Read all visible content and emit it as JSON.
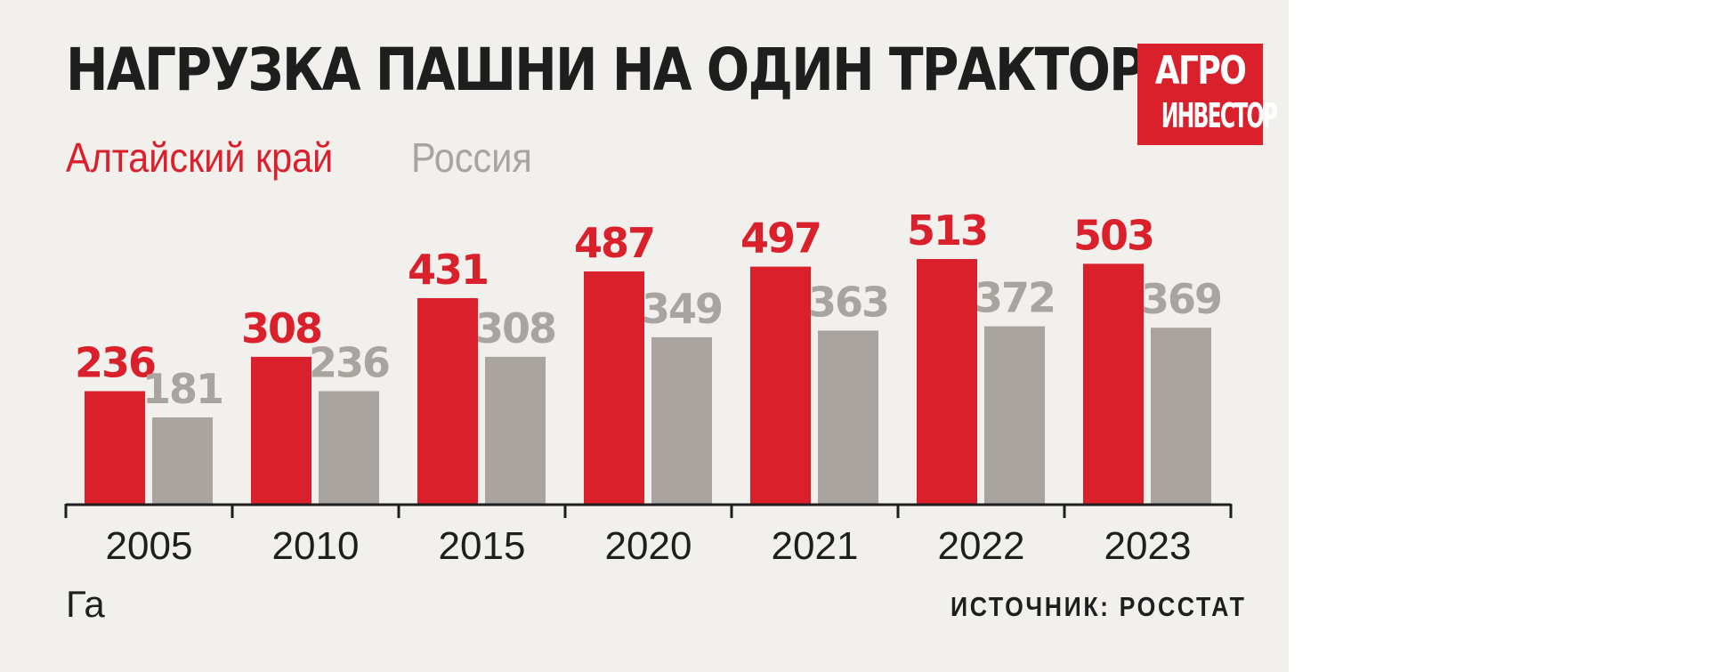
{
  "title": "НАГРУЗКА ПАШНИ НА ОДИН ТРАКТОР",
  "logo": {
    "line1": "АГРО",
    "line2": "ИНВЕСТОР"
  },
  "unit": "Га",
  "source": "ИСТОЧНИК: РОССТАТ",
  "colors": {
    "altai": "#d9202b",
    "russia": "#a9a4a0",
    "background": "#f2f0ed",
    "text": "#1e1e1e"
  },
  "chart_data": {
    "type": "bar",
    "categories": [
      "2005",
      "2010",
      "2015",
      "2020",
      "2021",
      "2022",
      "2023"
    ],
    "series": [
      {
        "name": "Алтайский край",
        "values": [
          236,
          308,
          431,
          487,
          497,
          513,
          503
        ]
      },
      {
        "name": "Россия",
        "values": [
          181,
          236,
          308,
          349,
          363,
          372,
          369
        ]
      }
    ],
    "ylabel": "Га",
    "ylim": [
      0,
      513
    ],
    "legend_position": "top-left",
    "grid": false
  }
}
